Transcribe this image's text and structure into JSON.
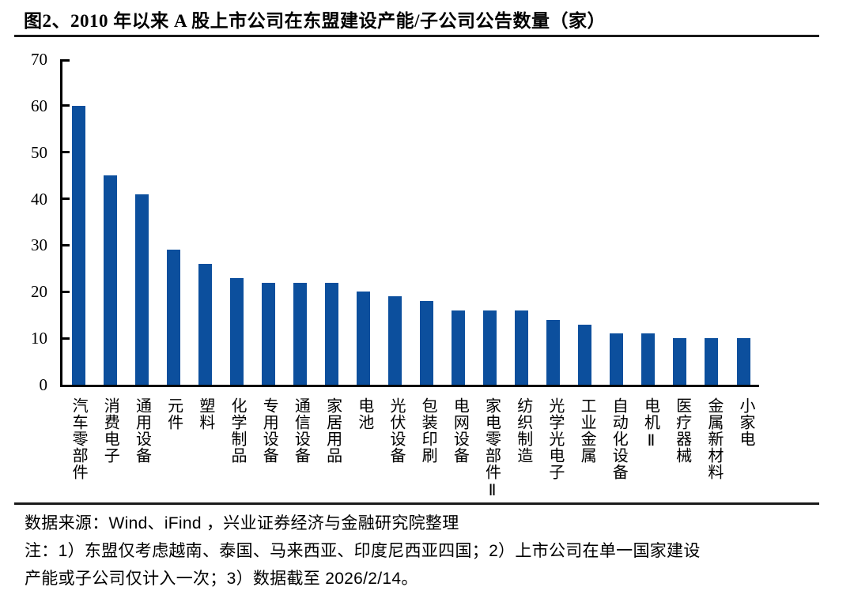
{
  "figure": {
    "title": "图2、2010 年以来 A 股上市公司在东盟建设产能/子公司公告数量（家）",
    "source_line": "数据来源：Wind、iFind ，兴业证券经济与金融研究院整理",
    "note_lines": [
      "注：1）东盟仅考虑越南、泰国、马来西亚、印度尼西亚四国；2）上市公司在单一国家建设",
      "产能或子公司仅计入一次；3）数据截至 2026/2/14。"
    ]
  },
  "chart_data": {
    "type": "bar",
    "title": "2010 年以来 A 股上市公司在东盟建设产能/子公司公告数量（家）",
    "categories": [
      "汽车零部件",
      "消费电子",
      "通用设备",
      "元件",
      "塑料",
      "化学制品",
      "专用设备",
      "通信设备",
      "家居用品",
      "电池",
      "光伏设备",
      "包装印刷",
      "电网设备",
      "家电零部件Ⅱ",
      "纺织制造",
      "光学光电子",
      "工业金属",
      "自动化设备",
      "电机Ⅱ",
      "医疗器械",
      "金属新材料",
      "小家电"
    ],
    "values": [
      60,
      45,
      41,
      29,
      26,
      23,
      22,
      22,
      22,
      20,
      19,
      18,
      16,
      16,
      16,
      14,
      13,
      11,
      11,
      10,
      10,
      10
    ],
    "xlabel": "",
    "ylabel": "",
    "ylim": [
      0,
      70
    ],
    "yticks": [
      0,
      10,
      20,
      30,
      40,
      50,
      60,
      70
    ],
    "grid": false,
    "legend": "none",
    "bar_color": "#0C4F9D",
    "axis_color": "#000000"
  }
}
